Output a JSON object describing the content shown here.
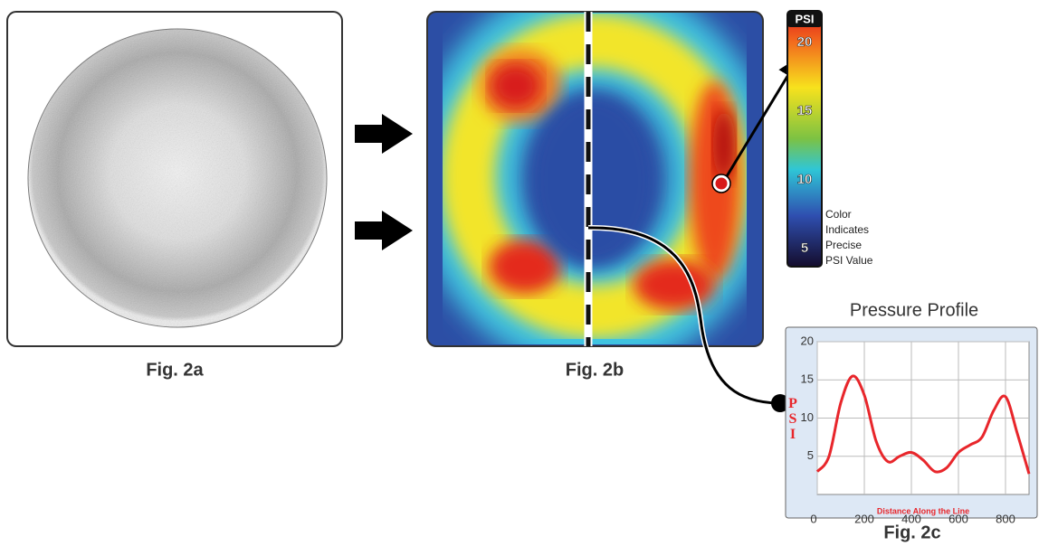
{
  "figures": [
    {
      "label": "Fig. 2a"
    },
    {
      "label": "Fig. 2b"
    },
    {
      "label": "Fig. 2c"
    }
  ],
  "colorbar": {
    "title": "PSI",
    "ticks": [
      20,
      15,
      10,
      5
    ],
    "caption": [
      "Color",
      "Indicates",
      "Precise",
      "PSI Value"
    ]
  },
  "chart_data": {
    "type": "line",
    "title": "Pressure Profile",
    "x_label": "Distance Along the Line",
    "y_label": "PSI",
    "x": [
      0,
      50,
      100,
      150,
      200,
      250,
      300,
      350,
      400,
      450,
      500,
      550,
      600,
      650,
      700,
      750,
      800,
      850,
      900
    ],
    "series": [
      {
        "color": "#e8262b",
        "values": [
          3,
          5,
          12,
          15.5,
          13,
          7,
          4.3,
          5,
          5.5,
          4.5,
          3,
          3.5,
          5.5,
          6.5,
          7.5,
          11,
          12.8,
          8,
          2.7
        ]
      }
    ],
    "xlim": [
      0,
      900
    ],
    "ylim": [
      0,
      20
    ],
    "xticks": [
      0,
      200,
      400,
      600,
      800
    ],
    "yticks": [
      5,
      10,
      15,
      20
    ],
    "grid": true
  }
}
